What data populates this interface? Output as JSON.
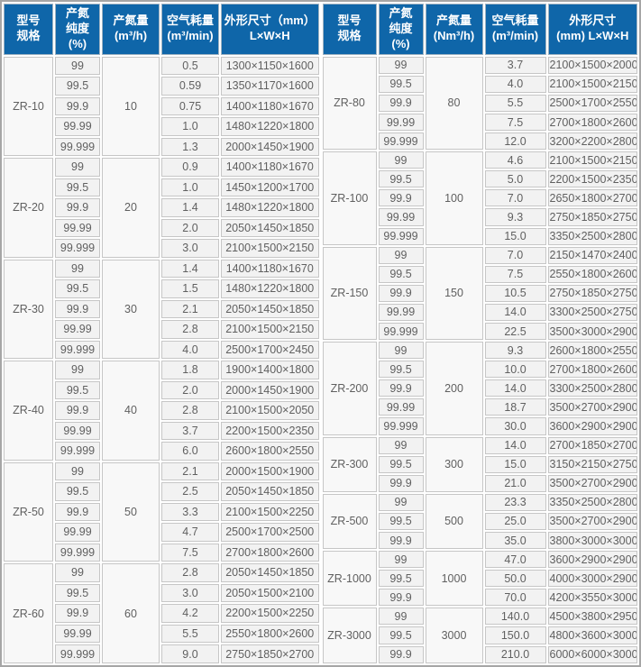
{
  "left_table": {
    "headers": {
      "model": "型号\n规格",
      "purity": "产氮\n纯度\n(%)",
      "output": "产氮量\n(m³/h)",
      "air": "空气耗量\n(m³/min)",
      "dims": "外形尺寸（mm）\nL×W×H"
    },
    "groups": [
      {
        "model": "ZR-10",
        "output": "10",
        "rows": [
          {
            "purity": "99",
            "air": "0.5",
            "dims": "1300×1150×1600"
          },
          {
            "purity": "99.5",
            "air": "0.59",
            "dims": "1350×1170×1600"
          },
          {
            "purity": "99.9",
            "air": "0.75",
            "dims": "1400×1180×1670"
          },
          {
            "purity": "99.99",
            "air": "1.0",
            "dims": "1480×1220×1800"
          },
          {
            "purity": "99.999",
            "air": "1.3",
            "dims": "2000×1450×1900"
          }
        ]
      },
      {
        "model": "ZR-20",
        "output": "20",
        "rows": [
          {
            "purity": "99",
            "air": "0.9",
            "dims": "1400×1180×1670"
          },
          {
            "purity": "99.5",
            "air": "1.0",
            "dims": "1450×1200×1700"
          },
          {
            "purity": "99.9",
            "air": "1.4",
            "dims": "1480×1220×1800"
          },
          {
            "purity": "99.99",
            "air": "2.0",
            "dims": "2050×1450×1850"
          },
          {
            "purity": "99.999",
            "air": "3.0",
            "dims": "2100×1500×2150"
          }
        ]
      },
      {
        "model": "ZR-30",
        "output": "30",
        "rows": [
          {
            "purity": "99",
            "air": "1.4",
            "dims": "1400×1180×1670"
          },
          {
            "purity": "99.5",
            "air": "1.5",
            "dims": "1480×1220×1800"
          },
          {
            "purity": "99.9",
            "air": "2.1",
            "dims": "2050×1450×1850"
          },
          {
            "purity": "99.99",
            "air": "2.8",
            "dims": "2100×1500×2150"
          },
          {
            "purity": "99.999",
            "air": "4.0",
            "dims": "2500×1700×2450"
          }
        ]
      },
      {
        "model": "ZR-40",
        "output": "40",
        "rows": [
          {
            "purity": "99",
            "air": "1.8",
            "dims": "1900×1400×1800"
          },
          {
            "purity": "99.5",
            "air": "2.0",
            "dims": "2000×1450×1900"
          },
          {
            "purity": "99.9",
            "air": "2.8",
            "dims": "2100×1500×2050"
          },
          {
            "purity": "99.99",
            "air": "3.7",
            "dims": "2200×1500×2350"
          },
          {
            "purity": "99.999",
            "air": "6.0",
            "dims": "2600×1800×2550"
          }
        ]
      },
      {
        "model": "ZR-50",
        "output": "50",
        "rows": [
          {
            "purity": "99",
            "air": "2.1",
            "dims": "2000×1500×1900"
          },
          {
            "purity": "99.5",
            "air": "2.5",
            "dims": "2050×1450×1850"
          },
          {
            "purity": "99.9",
            "air": "3.3",
            "dims": "2100×1500×2250"
          },
          {
            "purity": "99.99",
            "air": "4.7",
            "dims": "2500×1700×2500"
          },
          {
            "purity": "99.999",
            "air": "7.5",
            "dims": "2700×1800×2600"
          }
        ]
      },
      {
        "model": "ZR-60",
        "output": "60",
        "rows": [
          {
            "purity": "99",
            "air": "2.8",
            "dims": "2050×1450×1850"
          },
          {
            "purity": "99.5",
            "air": "3.0",
            "dims": "2050×1500×2100"
          },
          {
            "purity": "99.9",
            "air": "4.2",
            "dims": "2200×1500×2250"
          },
          {
            "purity": "99.99",
            "air": "5.5",
            "dims": "2550×1800×2600"
          },
          {
            "purity": "99.999",
            "air": "9.0",
            "dims": "2750×1850×2700"
          }
        ]
      }
    ]
  },
  "right_table": {
    "headers": {
      "model": "型号\n规格",
      "purity": "产氮\n纯度\n(%)",
      "output": "产氮量\n(Nm³/h)",
      "air": "空气耗量\n(m³/min)",
      "dims": "外形尺寸\n(mm)  L×W×H"
    },
    "groups": [
      {
        "model": "ZR-80",
        "output": "80",
        "rows": [
          {
            "purity": "99",
            "air": "3.7",
            "dims": "2100×1500×2000"
          },
          {
            "purity": "99.5",
            "air": "4.0",
            "dims": "2100×1500×2150"
          },
          {
            "purity": "99.9",
            "air": "5.5",
            "dims": "2500×1700×2550"
          },
          {
            "purity": "99.99",
            "air": "7.5",
            "dims": "2700×1800×2600"
          },
          {
            "purity": "99.999",
            "air": "12.0",
            "dims": "3200×2200×2800"
          }
        ]
      },
      {
        "model": "ZR-100",
        "output": "100",
        "rows": [
          {
            "purity": "99",
            "air": "4.6",
            "dims": "2100×1500×2150"
          },
          {
            "purity": "99.5",
            "air": "5.0",
            "dims": "2200×1500×2350"
          },
          {
            "purity": "99.9",
            "air": "7.0",
            "dims": "2650×1800×2700"
          },
          {
            "purity": "99.99",
            "air": "9.3",
            "dims": "2750×1850×2750"
          },
          {
            "purity": "99.999",
            "air": "15.0",
            "dims": "3350×2500×2800"
          }
        ]
      },
      {
        "model": "ZR-150",
        "output": "150",
        "rows": [
          {
            "purity": "99",
            "air": "7.0",
            "dims": "2150×1470×2400"
          },
          {
            "purity": "99.5",
            "air": "7.5",
            "dims": "2550×1800×2600"
          },
          {
            "purity": "99.9",
            "air": "10.5",
            "dims": "2750×1850×2750"
          },
          {
            "purity": "99.99",
            "air": "14.0",
            "dims": "3300×2500×2750"
          },
          {
            "purity": "99.999",
            "air": "22.5",
            "dims": "3500×3000×2900"
          }
        ]
      },
      {
        "model": "ZR-200",
        "output": "200",
        "rows": [
          {
            "purity": "99",
            "air": "9.3",
            "dims": "2600×1800×2550"
          },
          {
            "purity": "99.5",
            "air": "10.0",
            "dims": "2700×1800×2600"
          },
          {
            "purity": "99.9",
            "air": "14.0",
            "dims": "3300×2500×2800"
          },
          {
            "purity": "99.99",
            "air": "18.7",
            "dims": "3500×2700×2900"
          },
          {
            "purity": "99.999",
            "air": "30.0",
            "dims": "3600×2900×2900"
          }
        ]
      },
      {
        "model": "ZR-300",
        "output": "300",
        "rows": [
          {
            "purity": "99",
            "air": "14.0",
            "dims": "2700×1850×2700"
          },
          {
            "purity": "99.5",
            "air": "15.0",
            "dims": "3150×2150×2750"
          },
          {
            "purity": "99.9",
            "air": "21.0",
            "dims": "3500×2700×2900"
          }
        ]
      },
      {
        "model": "ZR-500",
        "output": "500",
        "rows": [
          {
            "purity": "99",
            "air": "23.3",
            "dims": "3350×2500×2800"
          },
          {
            "purity": "99.5",
            "air": "25.0",
            "dims": "3500×2700×2900"
          },
          {
            "purity": "99.9",
            "air": "35.0",
            "dims": "3800×3000×3000"
          }
        ]
      },
      {
        "model": "ZR-1000",
        "output": "1000",
        "rows": [
          {
            "purity": "99",
            "air": "47.0",
            "dims": "3600×2900×2900"
          },
          {
            "purity": "99.5",
            "air": "50.0",
            "dims": "4000×3000×2900"
          },
          {
            "purity": "99.9",
            "air": "70.0",
            "dims": "4200×3550×3000"
          }
        ]
      },
      {
        "model": "ZR-3000",
        "output": "3000",
        "rows": [
          {
            "purity": "99",
            "air": "140.0",
            "dims": "4500×3800×2950"
          },
          {
            "purity": "99.5",
            "air": "150.0",
            "dims": "4800×3600×3000"
          },
          {
            "purity": "99.9",
            "air": "210.0",
            "dims": "6000×6000×3000"
          }
        ]
      }
    ]
  }
}
